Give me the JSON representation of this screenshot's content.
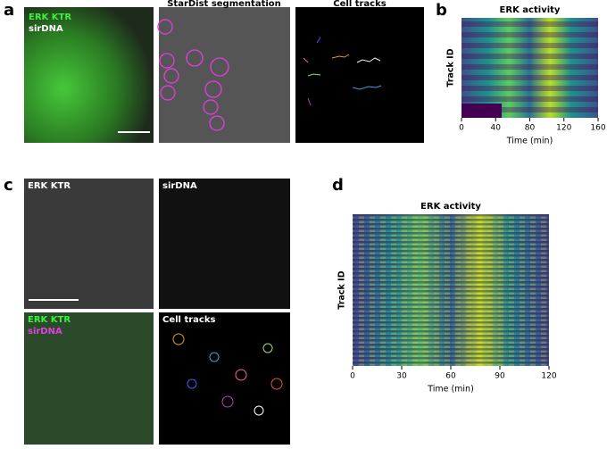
{
  "panel_a": {
    "label": "a",
    "overlay_labels": [
      "ERK KTR",
      "sirDNA"
    ],
    "titles": [
      "StarDist segmentation",
      "Cell tracks"
    ]
  },
  "panel_b": {
    "label": "b",
    "chart": {
      "type": "heatmap",
      "title": "ERK activity",
      "x_label": "Time (min)",
      "y_label": "Track ID",
      "xlim": [
        0,
        160
      ],
      "xticks": [
        0,
        40,
        80,
        120,
        160
      ]
    }
  },
  "panel_c": {
    "label": "c",
    "titles": [
      "ERK KTR",
      "sirDNA"
    ],
    "overlay_labels": [
      "ERK KTR",
      "sirDNA"
    ],
    "tracks_title": "Cell tracks"
  },
  "panel_d": {
    "label": "d",
    "chart": {
      "type": "heatmap",
      "title": "ERK activity",
      "x_label": "Time (min)",
      "y_label": "Track ID",
      "xlim": [
        0,
        120
      ],
      "xticks": [
        0,
        30,
        60,
        90,
        120
      ]
    }
  }
}
